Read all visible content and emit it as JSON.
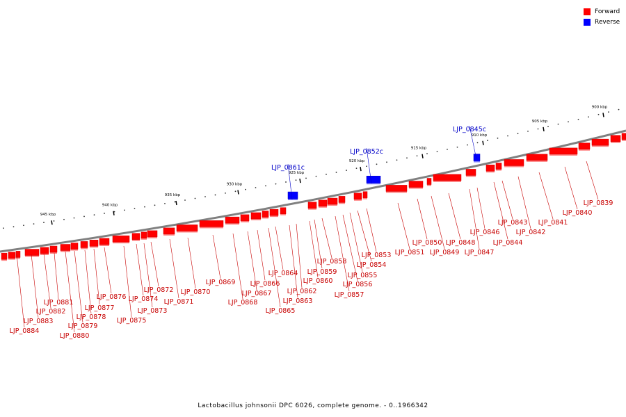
{
  "colors": {
    "forward": "#ff0000",
    "reverse": "#0000ff",
    "backbone": "#808080",
    "label_forward": "#c80000",
    "label_reverse": "#0000c8"
  },
  "legend": [
    {
      "label": "Forward",
      "color": "#ff0000"
    },
    {
      "label": "Reverse",
      "color": "#0000ff"
    }
  ],
  "caption": "Lactobacillus johnsonii DPC 6026, complete genome. - 0..1966342",
  "ticks": [
    "900 kbp",
    "905 kbp",
    "910 kbp",
    "915 kbp",
    "920 kbp",
    "925 kbp",
    "930 kbp",
    "935 kbp",
    "940 kbp",
    "945 kbp"
  ],
  "reverse_genes": [
    "LJP_0845c",
    "LJP_0852c",
    "LJP_0861c"
  ],
  "forward_genes": [
    "LJP_0839",
    "LJP_0840",
    "LJP_0841",
    "LJP_0842",
    "LJP_0843",
    "LJP_0844",
    "LJP_0846",
    "LJP_0847",
    "LJP_0848",
    "LJP_0849",
    "LJP_0850",
    "LJP_0851",
    "LJP_0853",
    "LJP_0854",
    "LJP_0855",
    "LJP_0856",
    "LJP_0857",
    "LJP_0858",
    "LJP_0859",
    "LJP_0860",
    "LJP_0862",
    "LJP_0863",
    "LJP_0864",
    "LJP_0865",
    "LJP_0866",
    "LJP_0867",
    "LJP_0868",
    "LJP_0869",
    "LJP_0870",
    "LJP_0871",
    "LJP_0872",
    "LJP_0873",
    "LJP_0874",
    "LJP_0875",
    "LJP_0876",
    "LJP_0877",
    "LJP_0878",
    "LJP_0879",
    "LJP_0880",
    "LJP_0881",
    "LJP_0882",
    "LJP_0883",
    "LJP_0884"
  ]
}
